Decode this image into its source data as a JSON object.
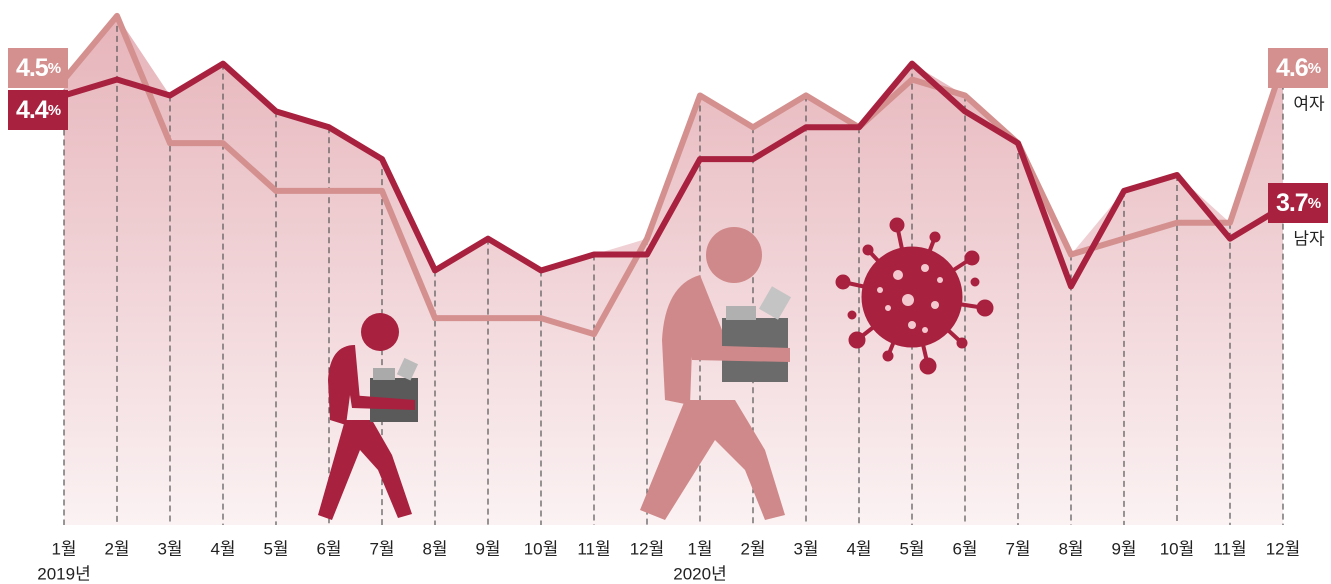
{
  "chart_data": {
    "type": "line",
    "categories": [
      "1월",
      "2월",
      "3월",
      "4월",
      "5월",
      "6월",
      "7월",
      "8월",
      "9월",
      "10월",
      "11월",
      "12월",
      "1월",
      "2월",
      "3월",
      "4월",
      "5월",
      "6월",
      "7월",
      "8월",
      "9월",
      "10월",
      "11월",
      "12월"
    ],
    "years": [
      "2019년",
      "2020년"
    ],
    "ylim": [
      1.7,
      5.0
    ],
    "series": [
      {
        "name": "여자",
        "color": "#d4908f",
        "values": [
          4.5,
          4.9,
          4.1,
          4.1,
          3.8,
          3.8,
          3.8,
          3.0,
          3.0,
          3.0,
          2.9,
          3.5,
          4.4,
          4.2,
          4.4,
          4.2,
          4.5,
          4.4,
          4.1,
          3.4,
          3.5,
          3.6,
          3.6,
          4.6
        ],
        "value_labels": [
          "4.5%",
          null,
          null,
          null,
          null,
          null,
          null,
          null,
          null,
          null,
          null,
          null,
          null,
          null,
          null,
          null,
          null,
          null,
          null,
          null,
          null,
          null,
          null,
          "4.6%"
        ]
      },
      {
        "name": "남자",
        "color": "#a8213f",
        "values": [
          4.4,
          4.5,
          4.4,
          4.6,
          4.3,
          4.2,
          4.0,
          3.3,
          3.5,
          3.3,
          3.4,
          3.4,
          4.0,
          4.0,
          4.2,
          4.2,
          4.6,
          4.3,
          4.1,
          3.2,
          3.8,
          3.9,
          3.5,
          3.7
        ],
        "value_labels": [
          "4.4%",
          null,
          null,
          null,
          null,
          null,
          null,
          null,
          null,
          null,
          null,
          null,
          null,
          null,
          null,
          null,
          null,
          null,
          null,
          null,
          null,
          null,
          null,
          "3.7%"
        ]
      }
    ]
  }
}
